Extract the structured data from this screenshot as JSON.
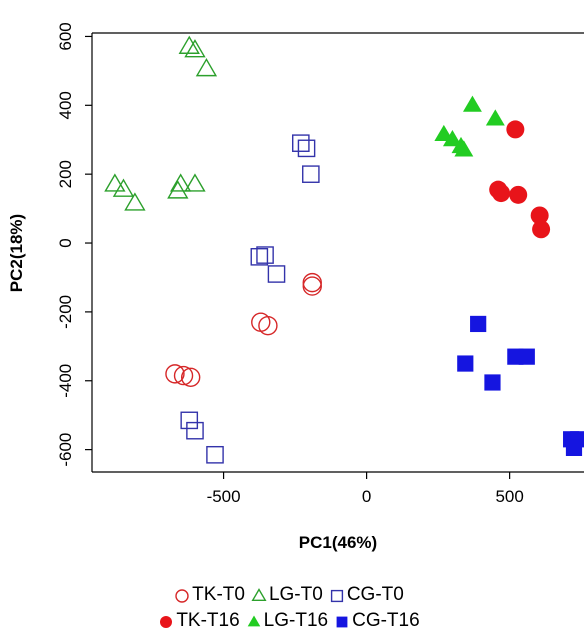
{
  "chart_data": {
    "type": "scatter",
    "xlabel": "PC1(46%)",
    "ylabel": "PC2(18%)",
    "xlim": [
      -960,
      760
    ],
    "ylim": [
      -665,
      610
    ],
    "xticks": [
      -500,
      0,
      500
    ],
    "yticks": [
      600,
      400,
      200,
      0,
      -200,
      -400,
      -600
    ],
    "series": [
      {
        "name": "TK-T0",
        "marker": "circle",
        "filled": false,
        "color": "#d62728",
        "points": [
          [
            -190,
            -115
          ],
          [
            -190,
            -125
          ],
          [
            -370,
            -230
          ],
          [
            -345,
            -240
          ],
          [
            -670,
            -380
          ],
          [
            -640,
            -385
          ],
          [
            -615,
            -390
          ]
        ]
      },
      {
        "name": "LG-T0",
        "marker": "triangle",
        "filled": false,
        "color": "#2ca02c",
        "points": [
          [
            -620,
            570
          ],
          [
            -600,
            560
          ],
          [
            -560,
            505
          ],
          [
            -880,
            170
          ],
          [
            -850,
            155
          ],
          [
            -810,
            115
          ],
          [
            -660,
            150
          ],
          [
            -650,
            170
          ],
          [
            -600,
            170
          ]
        ]
      },
      {
        "name": "CG-T0",
        "marker": "square",
        "filled": false,
        "color": "#3333aa",
        "points": [
          [
            -230,
            290
          ],
          [
            -210,
            275
          ],
          [
            -195,
            200
          ],
          [
            -375,
            -40
          ],
          [
            -355,
            -35
          ],
          [
            -315,
            -90
          ],
          [
            -620,
            -515
          ],
          [
            -600,
            -545
          ],
          [
            -530,
            -615
          ]
        ]
      },
      {
        "name": "TK-T16",
        "marker": "circle",
        "filled": true,
        "color": "#e8141a",
        "points": [
          [
            520,
            330
          ],
          [
            460,
            155
          ],
          [
            470,
            145
          ],
          [
            530,
            140
          ],
          [
            605,
            80
          ],
          [
            610,
            40
          ]
        ]
      },
      {
        "name": "LG-T16",
        "marker": "triangle",
        "filled": true,
        "color": "#22cc22",
        "points": [
          [
            370,
            400
          ],
          [
            450,
            360
          ],
          [
            270,
            315
          ],
          [
            300,
            300
          ],
          [
            330,
            280
          ],
          [
            340,
            270
          ]
        ]
      },
      {
        "name": "CG-T16",
        "marker": "square",
        "filled": true,
        "color": "#1515e0",
        "points": [
          [
            390,
            -235
          ],
          [
            345,
            -350
          ],
          [
            520,
            -330
          ],
          [
            560,
            -330
          ],
          [
            440,
            -405
          ],
          [
            715,
            -570
          ],
          [
            740,
            -570
          ],
          [
            725,
            -595
          ]
        ]
      }
    ]
  },
  "legend": {
    "rows": [
      [
        {
          "label": "TK-T0",
          "series": 0
        },
        {
          "label": "LG-T0",
          "series": 1
        },
        {
          "label": "CG-T0",
          "series": 2
        }
      ],
      [
        {
          "label": "TK-T16",
          "series": 3
        },
        {
          "label": "LG-T16",
          "series": 4
        },
        {
          "label": "CG-T16",
          "series": 5
        }
      ]
    ]
  }
}
